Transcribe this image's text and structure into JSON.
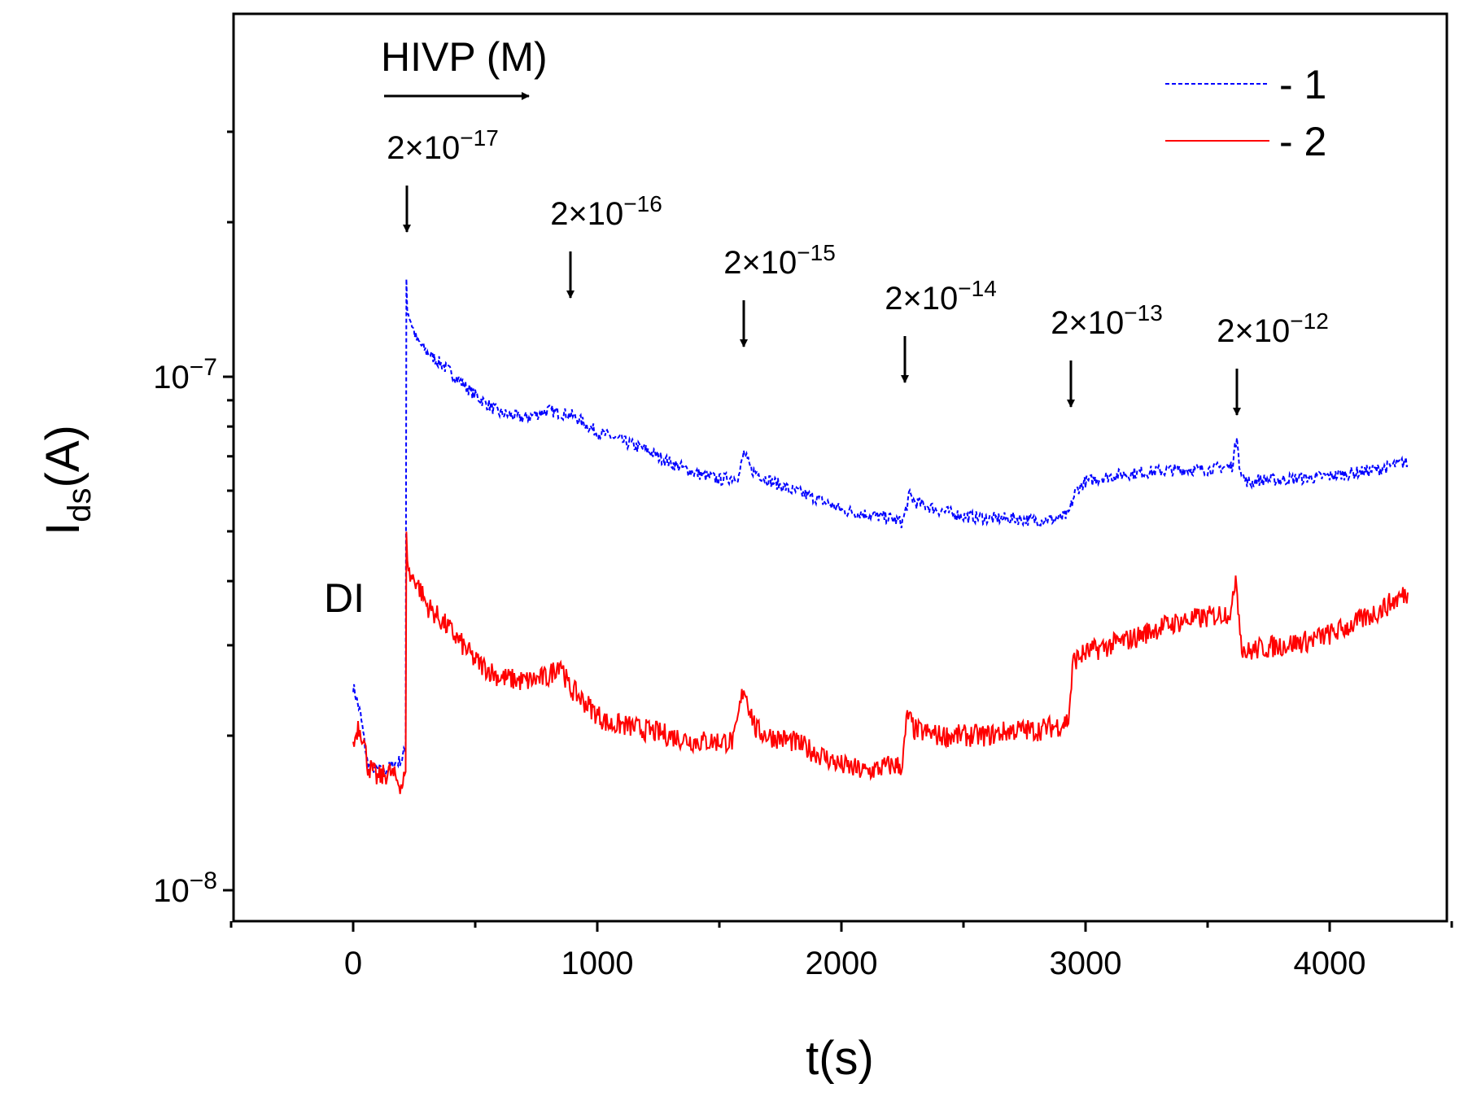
{
  "chart_data": {
    "type": "line",
    "title": "",
    "xlabel": "t(s)",
    "ylabel": {
      "base": "I",
      "sub": "ds",
      "rest": "(A)"
    },
    "xlim": [
      -500,
      4500
    ],
    "ylim": [
      1e-08,
      3.6e-07
    ],
    "yscale": "log",
    "grid": false,
    "x_ticks": [
      0,
      1000,
      2000,
      3000,
      4000
    ],
    "x_minor_ticks": [
      -500,
      500,
      1500,
      2500,
      3500,
      4500
    ],
    "y_ticks": [
      {
        "value": 1e-07,
        "base": "10",
        "exp": "−7"
      },
      {
        "value": 1e-08,
        "base": "10",
        "exp": "−8"
      }
    ],
    "y_minor_ticks": [
      2e-08,
      3e-08,
      4e-08,
      5e-08,
      6e-08,
      7e-08,
      8e-08,
      9e-08,
      2e-07,
      3e-07
    ],
    "legend": {
      "position": "top-right",
      "entries": [
        {
          "series": 0,
          "label": "- 1"
        },
        {
          "series": 1,
          "label": "- 2"
        }
      ]
    },
    "annotations": {
      "phase_label": "HIVP (M)",
      "di_label": "DI",
      "markers": [
        {
          "x": 220,
          "base": "2×10",
          "exp": "−17"
        },
        {
          "x": 890,
          "base": "2×10",
          "exp": "−16"
        },
        {
          "x": 1600,
          "base": "2×10",
          "exp": "−15"
        },
        {
          "x": 2260,
          "base": "2×10",
          "exp": "−14"
        },
        {
          "x": 2940,
          "base": "2×10",
          "exp": "−13"
        },
        {
          "x": 3620,
          "base": "2×10",
          "exp": "−12"
        }
      ]
    },
    "series": [
      {
        "color": "#0000ff",
        "dash": "dashed",
        "noise": 0.012,
        "x": [
          0,
          30,
          60,
          120,
          200,
          215,
          218,
          222,
          260,
          300,
          400,
          500,
          600,
          700,
          800,
          900,
          1000,
          1100,
          1200,
          1300,
          1400,
          1500,
          1580,
          1600,
          1630,
          1700,
          1800,
          1900,
          2000,
          2100,
          2200,
          2250,
          2280,
          2300,
          2400,
          2500,
          2600,
          2700,
          2800,
          2900,
          2930,
          2960,
          3000,
          3100,
          3200,
          3300,
          3400,
          3500,
          3600,
          3620,
          3630,
          3650,
          3680,
          3700,
          3800,
          3900,
          4000,
          4100,
          4200,
          4300,
          4320
        ],
        "y": [
          2.5e-08,
          2.2e-08,
          1.75e-08,
          1.7e-08,
          1.8e-08,
          1.9e-08,
          1.55e-07,
          1.35e-07,
          1.18e-07,
          1.12e-07,
          1.02e-07,
          9.2e-08,
          8.5e-08,
          8.3e-08,
          8.6e-08,
          8.4e-08,
          7.8e-08,
          7.5e-08,
          7.2e-08,
          6.8e-08,
          6.5e-08,
          6.3e-08,
          6.4e-08,
          7.1e-08,
          6.6e-08,
          6.3e-08,
          6e-08,
          5.8e-08,
          5.5e-08,
          5.4e-08,
          5.3e-08,
          5.2e-08,
          5.9e-08,
          5.7e-08,
          5.5e-08,
          5.35e-08,
          5.3e-08,
          5.3e-08,
          5.25e-08,
          5.3e-08,
          5.4e-08,
          6e-08,
          6.25e-08,
          6.4e-08,
          6.5e-08,
          6.55e-08,
          6.6e-08,
          6.6e-08,
          6.7e-08,
          7.6e-08,
          6.8e-08,
          6.3e-08,
          6.2e-08,
          6.3e-08,
          6.3e-08,
          6.35e-08,
          6.4e-08,
          6.5e-08,
          6.6e-08,
          6.8e-08,
          6.8e-08
        ]
      },
      {
        "color": "#ff0000",
        "dash": "solid",
        "noise": 0.022,
        "x": [
          0,
          20,
          40,
          60,
          100,
          150,
          200,
          215,
          218,
          230,
          260,
          300,
          400,
          500,
          600,
          700,
          800,
          850,
          880,
          900,
          1000,
          1050,
          1100,
          1200,
          1300,
          1400,
          1500,
          1560,
          1600,
          1620,
          1650,
          1700,
          1800,
          1900,
          2000,
          2100,
          2200,
          2250,
          2270,
          2300,
          2400,
          2500,
          2600,
          2700,
          2800,
          2900,
          2930,
          2950,
          3000,
          3100,
          3200,
          3300,
          3400,
          3500,
          3600,
          3615,
          3625,
          3640,
          3660,
          3700,
          3800,
          3900,
          4000,
          4100,
          4200,
          4300,
          4320
        ],
        "y": [
          1.9e-08,
          2.1e-08,
          2e-08,
          1.75e-08,
          1.65e-08,
          1.7e-08,
          1.6e-08,
          1.7e-08,
          4.8e-08,
          4.1e-08,
          4e-08,
          3.6e-08,
          3.2e-08,
          2.8e-08,
          2.6e-08,
          2.55e-08,
          2.6e-08,
          2.8e-08,
          2.5e-08,
          2.45e-08,
          2.2e-08,
          2.1e-08,
          2.1e-08,
          2.05e-08,
          2e-08,
          1.95e-08,
          1.95e-08,
          1.95e-08,
          2.5e-08,
          2.3e-08,
          2.05e-08,
          2e-08,
          1.95e-08,
          1.85e-08,
          1.75e-08,
          1.7e-08,
          1.75e-08,
          1.75e-08,
          2.2e-08,
          2.05e-08,
          2e-08,
          2e-08,
          2e-08,
          2.05e-08,
          2.05e-08,
          2.1e-08,
          2.15e-08,
          2.8e-08,
          2.9e-08,
          3e-08,
          3.1e-08,
          3.25e-08,
          3.35e-08,
          3.4e-08,
          3.5e-08,
          4.1e-08,
          3.6e-08,
          3e-08,
          2.9e-08,
          2.95e-08,
          3e-08,
          3.05e-08,
          3.15e-08,
          3.3e-08,
          3.5e-08,
          3.75e-08,
          3.8e-08
        ]
      }
    ]
  }
}
